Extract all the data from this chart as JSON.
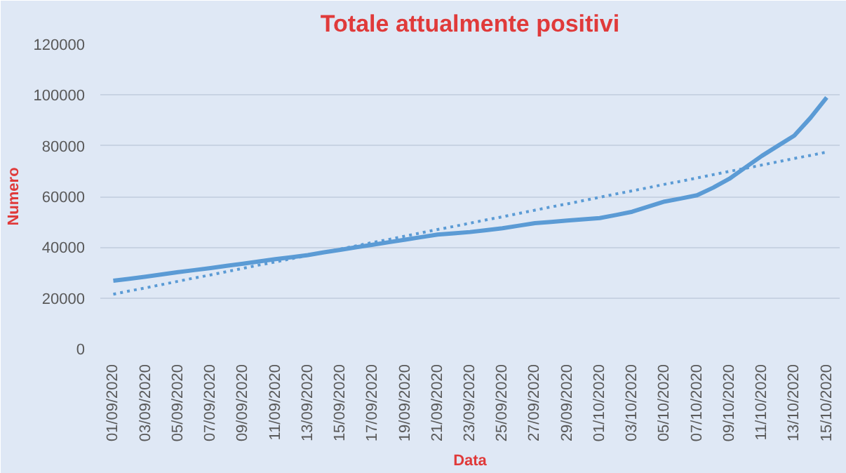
{
  "chart_data": {
    "type": "line",
    "title": "Totale attualmente positivi",
    "xlabel": "Data",
    "ylabel": "Numero",
    "categories": [
      "01/09/2020",
      null,
      "03/09/2020",
      null,
      "05/09/2020",
      null,
      "07/09/2020",
      null,
      "09/09/2020",
      null,
      "11/09/2020",
      null,
      "13/09/2020",
      null,
      "15/09/2020",
      null,
      "17/09/2020",
      null,
      "19/09/2020",
      null,
      "21/09/2020",
      null,
      "23/09/2020",
      null,
      "25/09/2020",
      null,
      "27/09/2020",
      null,
      "29/09/2020",
      null,
      "01/10/2020",
      null,
      "03/10/2020",
      null,
      "05/10/2020",
      null,
      "07/10/2020",
      null,
      "09/10/2020",
      null,
      "11/10/2020",
      null,
      "13/10/2020",
      null,
      "15/10/2020"
    ],
    "series": [
      {
        "color": "#5b9bd5",
        "line_style": "solid",
        "values": [
          26800,
          27600,
          28400,
          29300,
          30200,
          31000,
          31800,
          32700,
          33500,
          34400,
          35300,
          36100,
          36900,
          38000,
          39000,
          40000,
          41000,
          42000,
          43000,
          44000,
          45000,
          45500,
          46000,
          46700,
          47500,
          48500,
          49500,
          50000,
          50500,
          51000,
          51500,
          52700,
          54000,
          56000,
          58000,
          59200,
          60500,
          63500,
          67000,
          71500,
          76000,
          80000,
          84000,
          91000,
          99000
        ]
      },
      {
        "color": "#5b9bd5",
        "line_style": "dotted",
        "values": [
          21500,
          22800,
          24000,
          25300,
          26600,
          27900,
          29100,
          30400,
          31700,
          33000,
          34200,
          35500,
          36800,
          38000,
          39300,
          40600,
          41900,
          43100,
          44400,
          45700,
          47000,
          48200,
          49500,
          50800,
          52000,
          53300,
          54600,
          55900,
          57100,
          58400,
          59700,
          61000,
          62200,
          63500,
          64800,
          66000,
          67300,
          68600,
          69900,
          71100,
          72400,
          73700,
          75000,
          76200,
          77500
        ]
      }
    ],
    "ylim": [
      0,
      120000
    ],
    "yticks": [
      0,
      20000,
      40000,
      60000,
      80000,
      100000,
      120000
    ],
    "grid": "y",
    "marker": "none"
  }
}
